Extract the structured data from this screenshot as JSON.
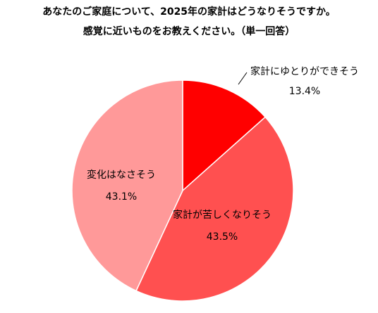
{
  "chart_data": {
    "type": "pie",
    "title": "あなたのご家庭について、2025年の家計はどうなりそうですか。",
    "subtitle": "感覚に近いものをお教えください。（単一回答）",
    "categories": [
      "家計にゆとりができそう",
      "家計が苦しくなりそう",
      "変化はなさそう"
    ],
    "values": [
      13.4,
      43.5,
      43.1
    ],
    "value_labels": [
      "13.4%",
      "43.5%",
      "43.1%"
    ],
    "colors": [
      "#ff0000",
      "#ff5050",
      "#ff9999"
    ]
  }
}
